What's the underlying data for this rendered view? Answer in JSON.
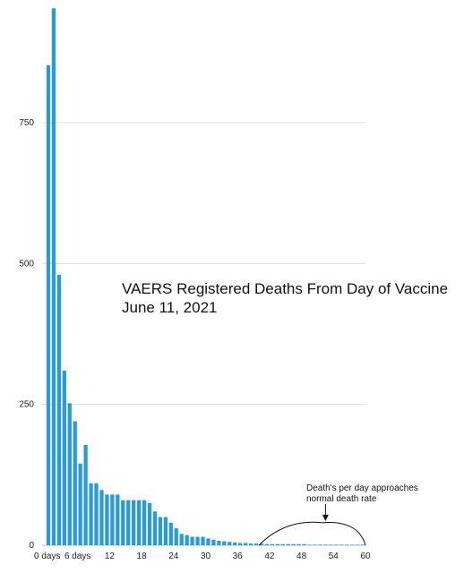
{
  "chart_data": {
    "type": "bar",
    "title": "VAERS Registered Deaths From Day of Vaccine",
    "subtitle": "June 11, 2021",
    "xlabel": "",
    "ylabel": "",
    "x": [
      0,
      1,
      2,
      3,
      4,
      5,
      6,
      7,
      8,
      9,
      10,
      11,
      12,
      13,
      14,
      15,
      16,
      17,
      18,
      19,
      20,
      21,
      22,
      23,
      24,
      25,
      26,
      27,
      28,
      29,
      30,
      31,
      32,
      33,
      34,
      35,
      36,
      37,
      38,
      39,
      40,
      41,
      42,
      43,
      44,
      45,
      46,
      47,
      48,
      49,
      50,
      51,
      52,
      53,
      54,
      55,
      56,
      57,
      58,
      59
    ],
    "values": [
      852,
      953,
      480,
      310,
      252,
      220,
      145,
      178,
      110,
      110,
      98,
      90,
      90,
      90,
      80,
      80,
      80,
      80,
      80,
      75,
      60,
      50,
      50,
      40,
      30,
      20,
      18,
      15,
      15,
      15,
      12,
      10,
      8,
      7,
      6,
      5,
      4,
      4,
      3,
      3,
      3,
      2,
      2,
      2,
      2,
      2,
      2,
      2,
      2,
      1,
      1,
      1,
      1,
      1,
      1,
      1,
      1,
      1,
      1,
      1
    ],
    "color": "#2b9bd8",
    "ylim": [
      0,
      960
    ],
    "xlim": [
      0,
      60
    ],
    "y_ticks": [
      {
        "value": 0,
        "label": "0"
      },
      {
        "value": 250,
        "label": "250"
      },
      {
        "value": 500,
        "label": "500"
      },
      {
        "value": 750,
        "label": "750"
      }
    ],
    "x_ticks": [
      {
        "value": 0,
        "label": "0 days"
      },
      {
        "value": 6,
        "label": "6 days"
      },
      {
        "value": 12,
        "label": "12"
      },
      {
        "value": 18,
        "label": "18"
      },
      {
        "value": 24,
        "label": "24"
      },
      {
        "value": 30,
        "label": "30"
      },
      {
        "value": 36,
        "label": "36"
      },
      {
        "value": 42,
        "label": "42"
      },
      {
        "value": 48,
        "label": "48"
      },
      {
        "value": 54,
        "label": "54"
      },
      {
        "value": 60,
        "label": "60"
      }
    ],
    "grid": true,
    "legend": "none",
    "annotation": {
      "text_lines": [
        "Death's per day approaches",
        "normal death rate"
      ],
      "arrow_target": [
        52.5,
        40
      ],
      "curve": {
        "x_start": 40,
        "x_peak": 52,
        "x_end": 60,
        "y_peak": 40
      }
    }
  }
}
